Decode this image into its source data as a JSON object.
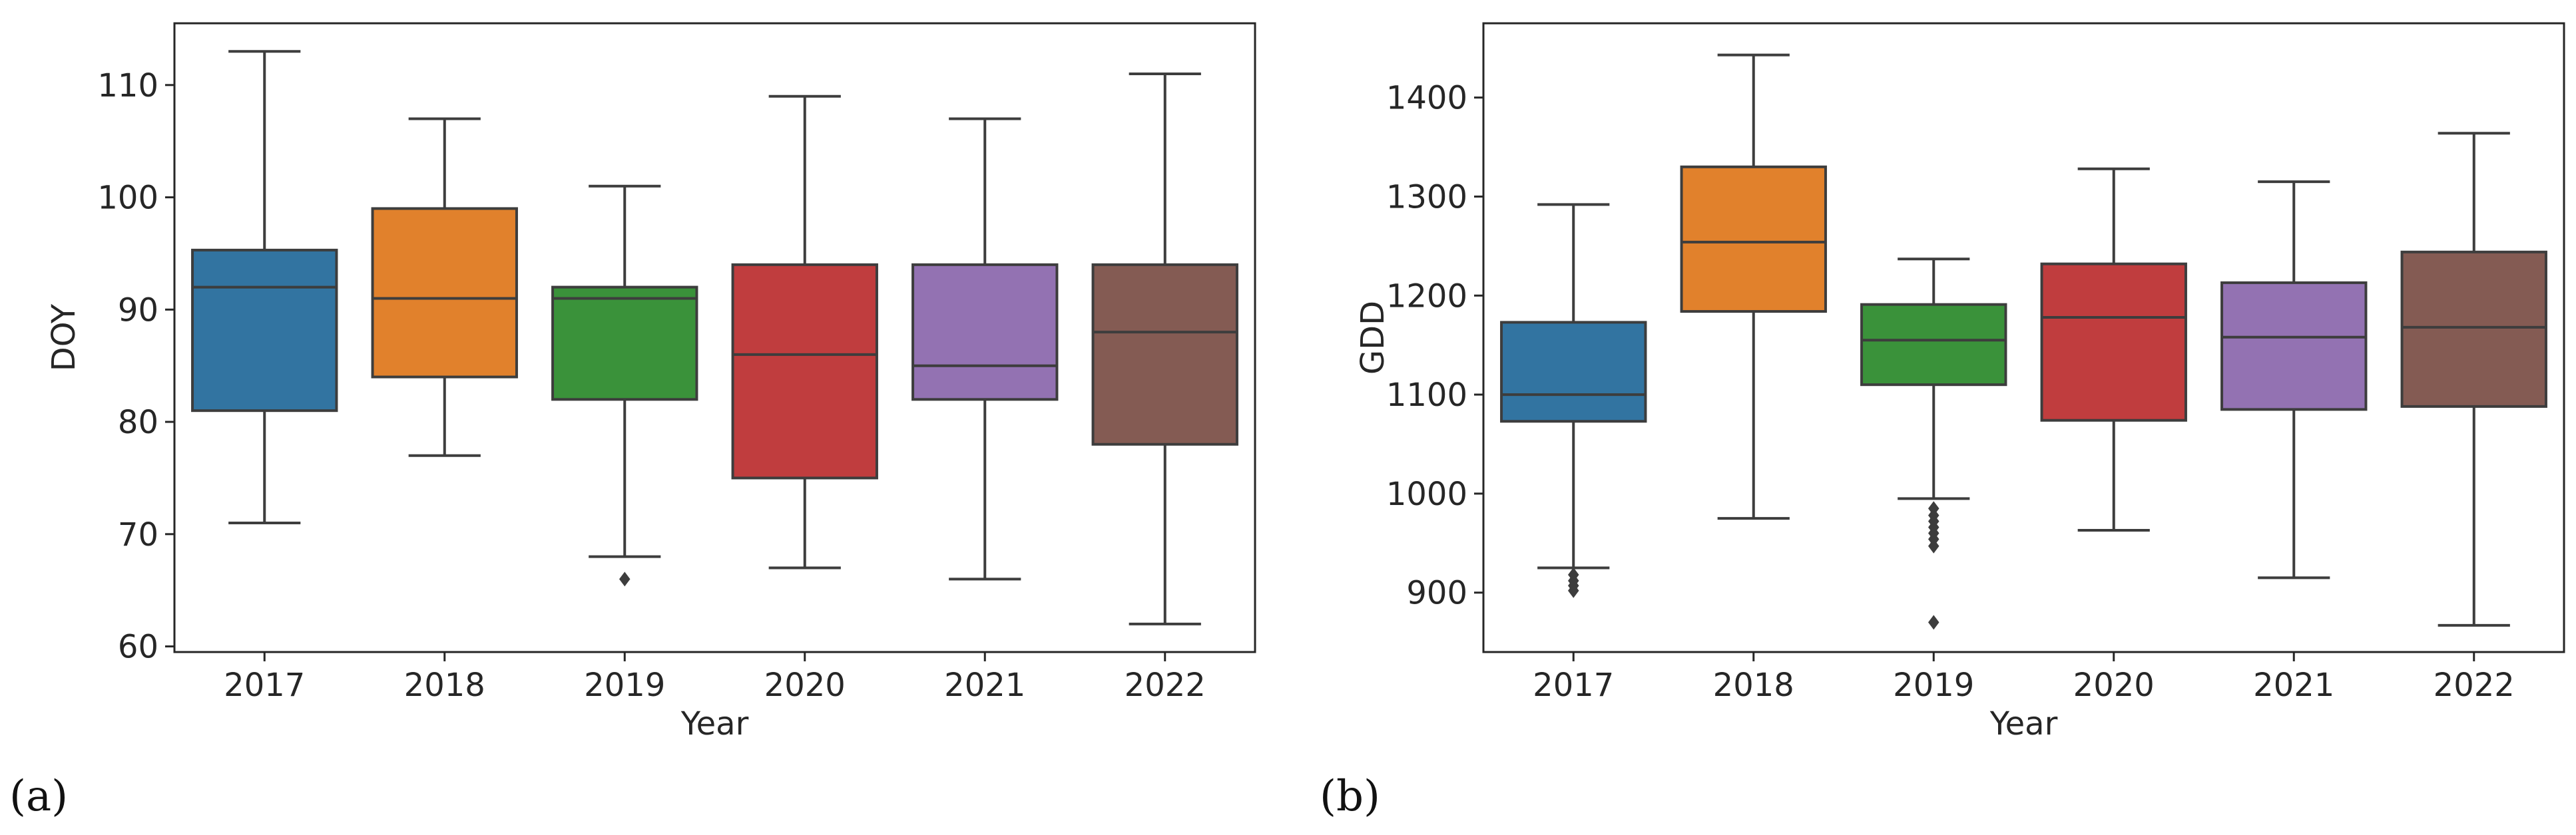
{
  "chart_data": [
    {
      "type": "box",
      "panel_label": "(a)",
      "xlabel": "Year",
      "ylabel": "DOY",
      "ylim": [
        59.5,
        115.5
      ],
      "yticks": [
        60,
        70,
        80,
        90,
        100,
        110
      ],
      "categories": [
        "2017",
        "2018",
        "2019",
        "2020",
        "2021",
        "2022"
      ],
      "colors": [
        "#3274a1",
        "#e1812c",
        "#3a923a",
        "#c03d3e",
        "#9372b2",
        "#845b53"
      ],
      "boxes": [
        {
          "category": "2017",
          "whisker_low": 71,
          "q1": 81,
          "median": 92,
          "q3": 95.3,
          "whisker_high": 113,
          "outliers": []
        },
        {
          "category": "2018",
          "whisker_low": 77,
          "q1": 84,
          "median": 91,
          "q3": 99,
          "whisker_high": 107,
          "outliers": []
        },
        {
          "category": "2019",
          "whisker_low": 68,
          "q1": 82,
          "median": 91,
          "q3": 92,
          "whisker_high": 101,
          "outliers": [
            66
          ]
        },
        {
          "category": "2020",
          "whisker_low": 67,
          "q1": 75,
          "median": 86,
          "q3": 94,
          "whisker_high": 109,
          "outliers": []
        },
        {
          "category": "2021",
          "whisker_low": 66,
          "q1": 82,
          "median": 85,
          "q3": 94,
          "whisker_high": 107,
          "outliers": []
        },
        {
          "category": "2022",
          "whisker_low": 62,
          "q1": 78,
          "median": 88,
          "q3": 94,
          "whisker_high": 111,
          "outliers": []
        }
      ]
    },
    {
      "type": "box",
      "panel_label": "(b)",
      "xlabel": "Year",
      "ylabel": "GDD",
      "ylim": [
        840,
        1475
      ],
      "yticks": [
        900,
        1000,
        1100,
        1200,
        1300,
        1400
      ],
      "categories": [
        "2017",
        "2018",
        "2019",
        "2020",
        "2021",
        "2022"
      ],
      "colors": [
        "#3274a1",
        "#e1812c",
        "#3a923a",
        "#c03d3e",
        "#9372b2",
        "#845b53"
      ],
      "boxes": [
        {
          "category": "2017",
          "whisker_low": 925,
          "q1": 1073,
          "median": 1100,
          "q3": 1173,
          "whisker_high": 1292,
          "outliers": [
            918,
            912,
            907,
            902
          ]
        },
        {
          "category": "2018",
          "whisker_low": 975,
          "q1": 1184,
          "median": 1254,
          "q3": 1330,
          "whisker_high": 1443,
          "outliers": []
        },
        {
          "category": "2019",
          "whisker_low": 995,
          "q1": 1110,
          "median": 1155,
          "q3": 1191,
          "whisker_high": 1237,
          "outliers": [
            985,
            978,
            972,
            966,
            960,
            954,
            947,
            870
          ]
        },
        {
          "category": "2020",
          "whisker_low": 963,
          "q1": 1074,
          "median": 1178,
          "q3": 1232,
          "whisker_high": 1328,
          "outliers": []
        },
        {
          "category": "2021",
          "whisker_low": 915,
          "q1": 1085,
          "median": 1158,
          "q3": 1213,
          "whisker_high": 1315,
          "outliers": []
        },
        {
          "category": "2022",
          "whisker_low": 867,
          "q1": 1088,
          "median": 1168,
          "q3": 1244,
          "whisker_high": 1364,
          "outliers": []
        }
      ]
    }
  ]
}
